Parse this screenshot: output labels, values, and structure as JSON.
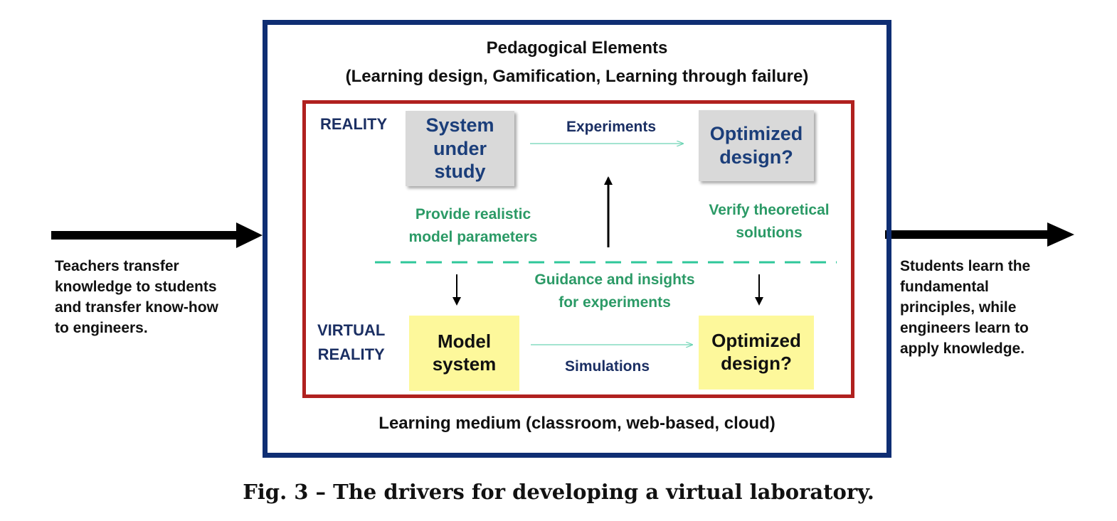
{
  "outer": {
    "title_line1": "Pedagogical Elements",
    "title_line2": "(Learning design, Gamification, Learning through failure)",
    "bottom_label": "Learning medium (classroom, web-based, cloud)",
    "border_color": "#0f2e73"
  },
  "inner": {
    "border_color": "#b0211f",
    "reality_label": "REALITY",
    "virtual_label_line1": "VIRTUAL",
    "virtual_label_line2": "REALITY",
    "system_under_study": [
      "System",
      "under",
      "study"
    ],
    "optimized_design_top": [
      "Optimized",
      "design?"
    ],
    "model_system": [
      "Model",
      "system"
    ],
    "optimized_design_bottom": [
      "Optimized",
      "design?"
    ],
    "experiments_label": "Experiments",
    "simulations_label": "Simulations",
    "provide_params": [
      "Provide realistic",
      "model parameters"
    ],
    "verify_solutions": [
      "Verify theoretical",
      "solutions"
    ],
    "guidance": [
      "Guidance and insights",
      "for experiments"
    ]
  },
  "left_text": [
    "Teachers transfer",
    "knowledge to students",
    "and transfer know-how",
    "to engineers."
  ],
  "right_text": [
    "Students learn the",
    "fundamental",
    "principles, while",
    "engineers learn to",
    "apply knowledge."
  ],
  "caption": "Fig. 3 – The drivers for developing a virtual laboratory.",
  "colors": {
    "navy": "#1b2f63",
    "green": "#2b9a66",
    "gray_box": "#d9d9d9",
    "yellow_box": "#fdf89b",
    "dashed_line": "#2fc79a"
  }
}
